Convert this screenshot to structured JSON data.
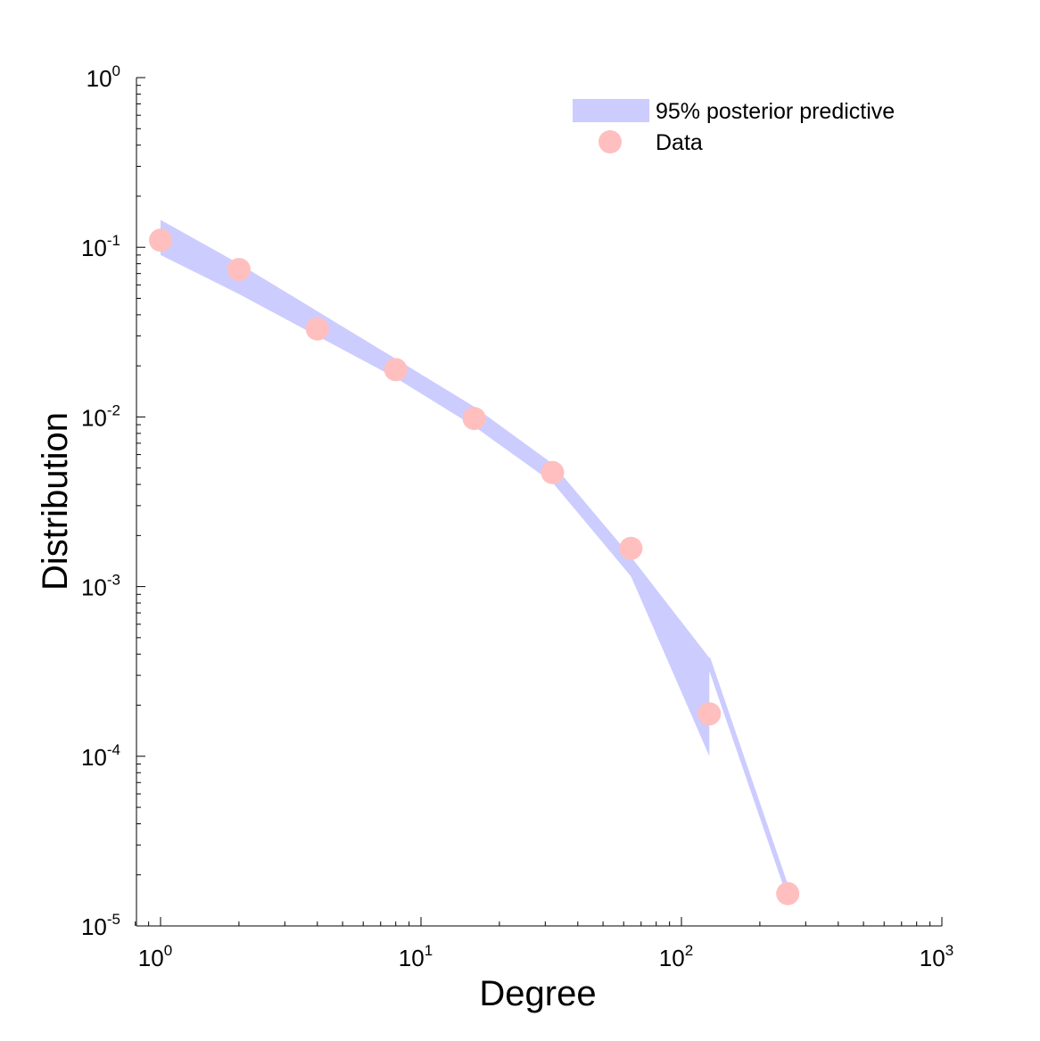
{
  "chart_data": {
    "type": "scatter",
    "title": "",
    "xlabel": "Degree",
    "ylabel": "Distribution",
    "x_scale": "log",
    "y_scale": "log",
    "xlim": [
      0.8,
      1000
    ],
    "ylim": [
      1e-05,
      1
    ],
    "x_ticks": [
      {
        "base": "10",
        "exp": "0",
        "value": 1
      },
      {
        "base": "10",
        "exp": "1",
        "value": 10
      },
      {
        "base": "10",
        "exp": "2",
        "value": 100
      },
      {
        "base": "10",
        "exp": "3",
        "value": 1000
      }
    ],
    "y_ticks": [
      {
        "base": "10",
        "exp": "0",
        "value": 1
      },
      {
        "base": "10",
        "exp": "-1",
        "value": 0.1
      },
      {
        "base": "10",
        "exp": "-2",
        "value": 0.01
      },
      {
        "base": "10",
        "exp": "-3",
        "value": 0.001
      },
      {
        "base": "10",
        "exp": "-4",
        "value": 0.0001
      },
      {
        "base": "10",
        "exp": "-5",
        "value": 1e-05
      }
    ],
    "grid": false,
    "legend_position": "top-right",
    "band": {
      "name": "95% posterior predictive",
      "color": "#ccccff",
      "x": [
        1,
        2,
        4,
        8,
        16,
        32,
        64,
        128
      ],
      "upper": [
        0.145,
        0.08,
        0.042,
        0.022,
        0.0115,
        0.0053,
        0.0015,
        0.00038
      ],
      "lower": [
        0.09,
        0.053,
        0.03,
        0.017,
        0.0088,
        0.0041,
        0.00115,
        0.0001
      ]
    },
    "tail_band": {
      "color": "#ccccff",
      "x": [
        128,
        256
      ],
      "upper": [
        0.00038,
        1.7e-05
      ],
      "lower": [
        0.00033,
        1.5e-05
      ]
    },
    "series": [
      {
        "name": "Data",
        "color": "#ffbfbf",
        "x": [
          1,
          2,
          4,
          8,
          16,
          32,
          64,
          128,
          256
        ],
        "y": [
          0.11,
          0.074,
          0.033,
          0.019,
          0.0098,
          0.0047,
          0.00168,
          0.000178,
          1.55e-05
        ]
      }
    ]
  }
}
